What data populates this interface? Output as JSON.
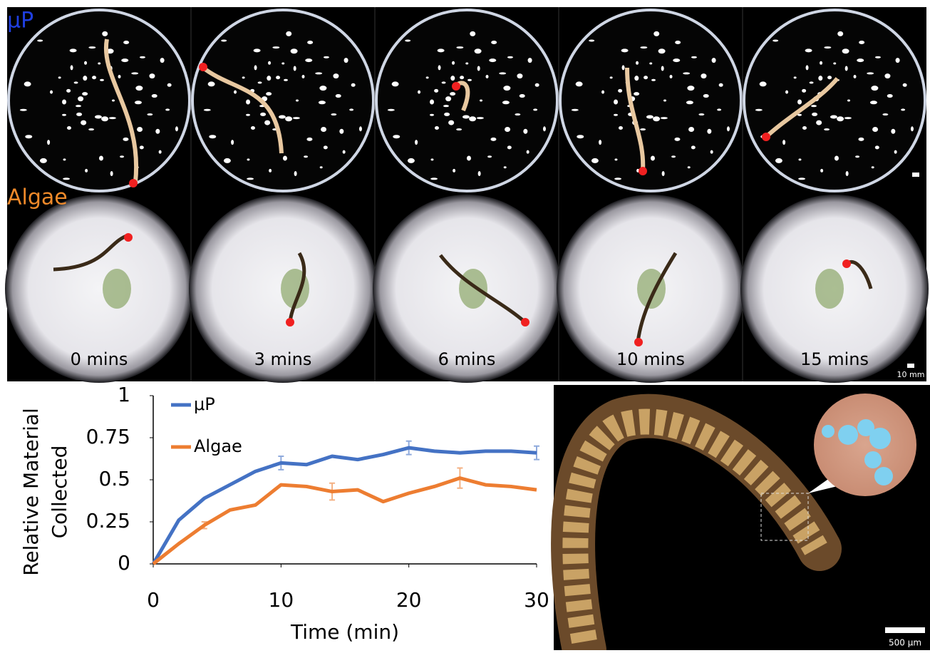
{
  "panels": {
    "row_labels": [
      "μP",
      "Algae"
    ],
    "time_labels": [
      "0 mins",
      "3 mins",
      "6 mins",
      "10 mins",
      "15 mins"
    ],
    "scale_bar": "10 mm",
    "micrograph_scale_bar": "500 μm"
  },
  "chart_data": {
    "type": "line",
    "y_label": [
      "Relative Material",
      "Collected"
    ],
    "x_label": "Time (min)",
    "x": [
      0,
      2,
      4,
      6,
      8,
      10,
      12,
      14,
      16,
      18,
      20,
      22,
      24,
      26,
      28,
      30
    ],
    "series": [
      {
        "name": "μP",
        "color": "#4472c4",
        "values": [
          0,
          0.26,
          0.39,
          0.47,
          0.55,
          0.6,
          0.59,
          0.64,
          0.62,
          0.65,
          0.69,
          0.67,
          0.66,
          0.67,
          0.67,
          0.66
        ],
        "errors": [
          null,
          null,
          null,
          null,
          null,
          0.04,
          null,
          null,
          null,
          null,
          0.04,
          null,
          null,
          null,
          null,
          0.04
        ]
      },
      {
        "name": "Algae",
        "color": "#ed7d31",
        "values": [
          0,
          0.12,
          0.23,
          0.32,
          0.35,
          0.47,
          0.46,
          0.43,
          0.44,
          0.37,
          0.42,
          0.46,
          0.51,
          0.47,
          0.46,
          0.44
        ],
        "errors": [
          null,
          null,
          0.02,
          null,
          null,
          null,
          null,
          0.05,
          null,
          null,
          null,
          null,
          0.06,
          null,
          null,
          null
        ]
      }
    ],
    "xlim": [
      0,
      30
    ],
    "xticks": [
      0,
      10,
      20,
      30
    ],
    "ylim": [
      0,
      1
    ],
    "yticks": [
      0,
      0.25,
      0.5,
      0.75,
      1
    ],
    "grid": false
  }
}
